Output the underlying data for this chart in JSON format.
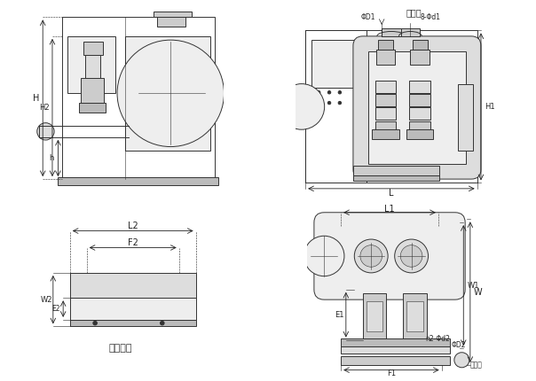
{
  "bg_color": "#ffffff",
  "line_color": "#333333",
  "fill_light": "#eeeeee",
  "fill_mid": "#dddddd",
  "fill_dark": "#cccccc",
  "fill_darker": "#bbbbbb",
  "title_tr": "进水口",
  "label_bl": "控制柜底",
  "label_outlet": "出水口",
  "lw": 0.7,
  "thin": 0.4,
  "fontsize_label": 7,
  "fontsize_small": 6,
  "fontsize_tiny": 5.5,
  "dim_color": "#222222"
}
